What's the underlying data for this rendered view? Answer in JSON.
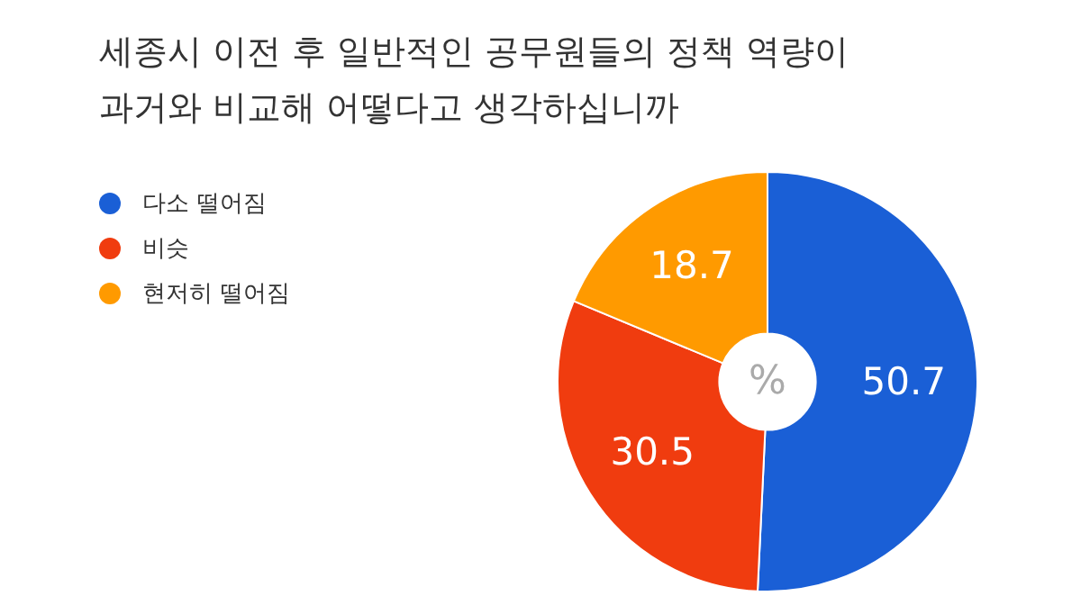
{
  "chart_data": {
    "type": "donut",
    "title": "세종시 이전 후 일반적인 공무원들의 정책 역량이\n과거와 비교해 어떻다고 생각하십니까",
    "categories": [
      "다소 떨어짐",
      "비슷",
      "현저히 떨어짐"
    ],
    "values": [
      50.7,
      30.5,
      18.7
    ],
    "colors": [
      "#1a5fd6",
      "#f03c0f",
      "#ff9a00"
    ],
    "data_labels": true,
    "legend": "left",
    "annotations": [
      "%"
    ]
  }
}
